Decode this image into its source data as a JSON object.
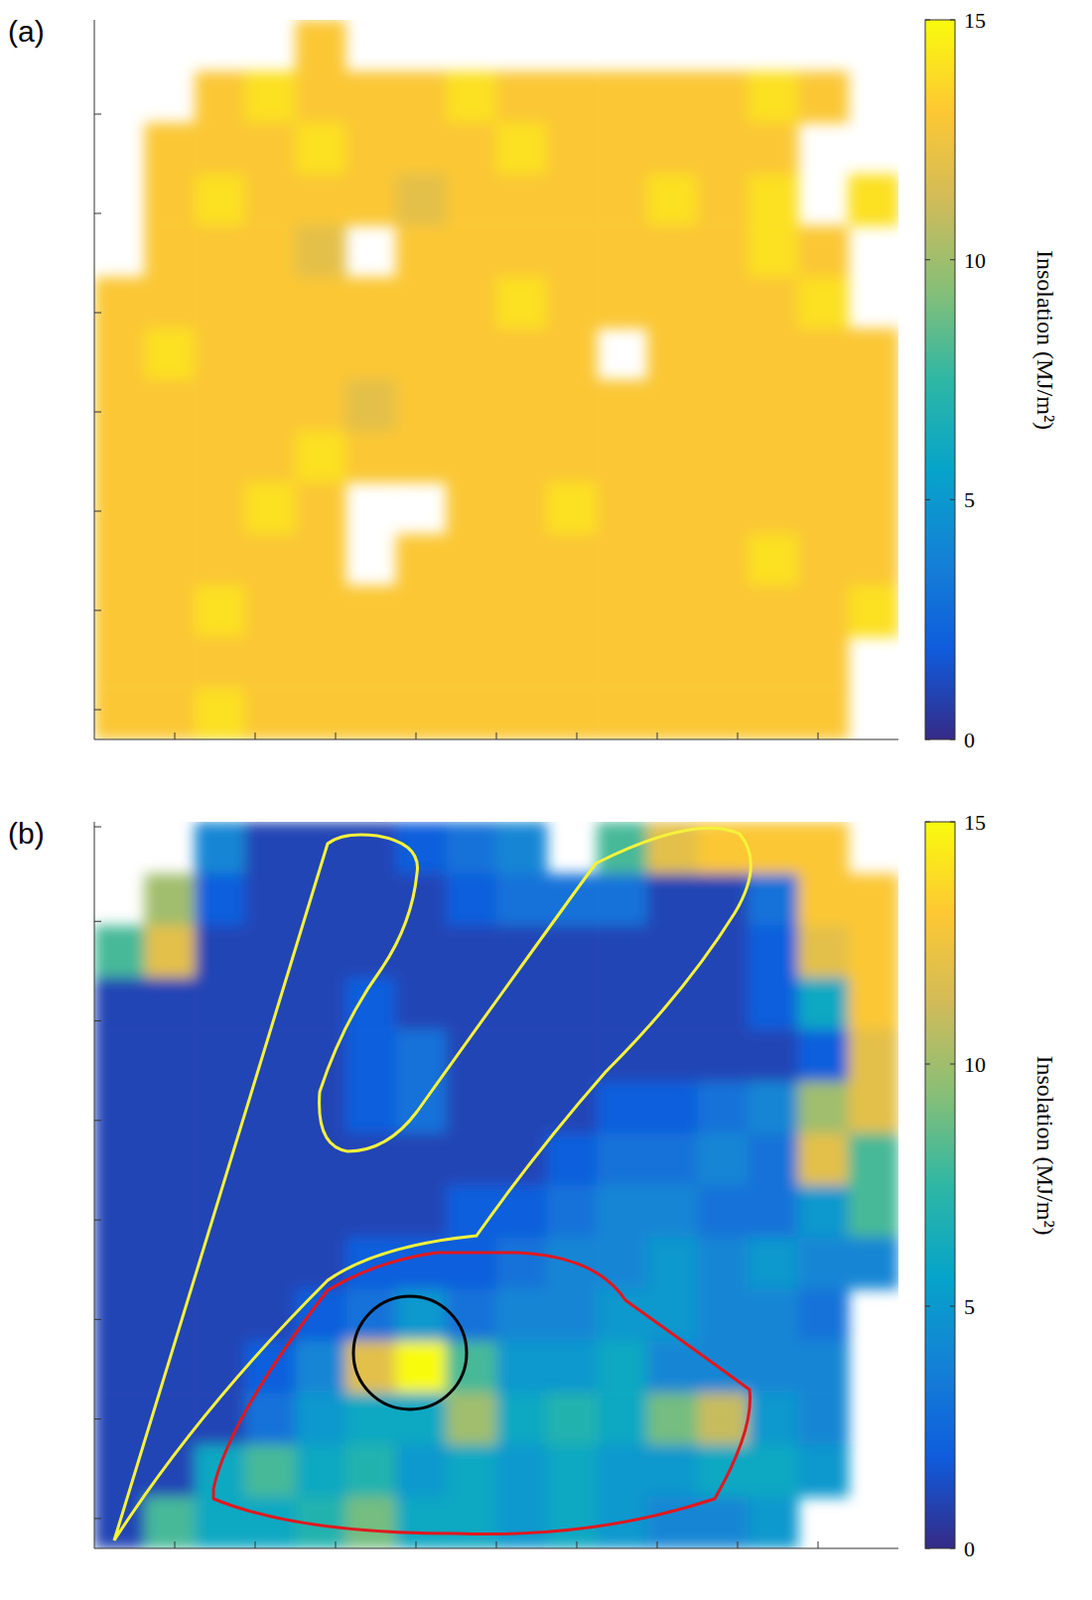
{
  "chart_data": [
    {
      "type": "heatmap",
      "title": "(a)",
      "tick_labels": false,
      "xlim": [
        0,
        10
      ],
      "xticks": [
        1,
        2,
        3,
        4,
        5,
        6,
        7,
        8,
        9
      ],
      "ylim": [
        0,
        7.25
      ],
      "yticks": [
        0.3,
        1.3,
        2.3,
        3.3,
        4.3,
        5.3,
        6.3
      ],
      "colorbar": {
        "label": "Insolation (MJ/m²)",
        "range": [
          0,
          15
        ],
        "ticks": [
          0,
          5,
          10,
          15
        ]
      },
      "cells": [
        [
          null,
          null,
          null,
          null,
          13,
          null,
          null,
          null,
          null,
          null,
          null,
          null,
          null,
          null,
          null,
          null
        ],
        [
          null,
          null,
          13,
          14,
          13,
          13,
          13,
          14,
          13,
          13,
          13,
          13,
          13,
          14,
          13,
          null
        ],
        [
          null,
          13,
          13,
          13,
          14,
          13,
          13,
          13,
          14,
          13,
          13,
          13,
          13,
          13,
          null,
          null
        ],
        [
          null,
          13,
          14,
          13,
          13,
          13,
          12,
          13,
          13,
          13,
          13,
          14,
          13,
          14,
          null,
          14
        ],
        [
          null,
          13,
          13,
          13,
          12,
          null,
          13,
          13,
          13,
          13,
          13,
          13,
          13,
          14,
          13,
          null
        ],
        [
          13,
          13,
          13,
          13,
          13,
          13,
          13,
          13,
          14,
          13,
          13,
          13,
          13,
          13,
          14,
          null
        ],
        [
          13,
          14,
          13,
          13,
          13,
          13,
          13,
          13,
          13,
          13,
          null,
          13,
          13,
          13,
          13,
          13
        ],
        [
          13,
          13,
          13,
          13,
          13,
          12,
          13,
          13,
          13,
          13,
          13,
          13,
          13,
          13,
          13,
          13
        ],
        [
          13,
          13,
          13,
          13,
          14,
          13,
          13,
          13,
          13,
          13,
          13,
          13,
          13,
          13,
          13,
          13
        ],
        [
          13,
          13,
          13,
          14,
          13,
          null,
          null,
          13,
          13,
          14,
          13,
          13,
          13,
          13,
          13,
          13
        ],
        [
          13,
          13,
          13,
          13,
          13,
          null,
          13,
          13,
          13,
          13,
          13,
          13,
          13,
          14,
          13,
          13
        ],
        [
          13,
          13,
          14,
          13,
          13,
          13,
          13,
          13,
          13,
          13,
          13,
          13,
          13,
          13,
          13,
          14
        ],
        [
          13,
          13,
          13,
          13,
          13,
          13,
          13,
          13,
          13,
          13,
          13,
          13,
          13,
          13,
          13,
          null
        ],
        [
          13,
          13,
          14,
          13,
          13,
          13,
          13,
          13,
          13,
          13,
          13,
          13,
          13,
          13,
          13,
          null
        ]
      ]
    },
    {
      "type": "heatmap",
      "title": "(b)",
      "tick_labels": false,
      "xlim": [
        0,
        10
      ],
      "xticks": [
        1,
        2,
        3,
        4,
        5,
        6,
        7,
        8,
        9
      ],
      "ylim": [
        0,
        7.3
      ],
      "yticks": [
        0.3,
        1.3,
        2.3,
        3.3,
        4.3,
        5.3,
        6.3,
        7.25
      ],
      "colorbar": {
        "label": "Insolation (MJ/m²)",
        "range": [
          0,
          15
        ],
        "ticks": [
          0,
          5,
          10,
          15
        ]
      },
      "cells": [
        [
          null,
          null,
          4,
          1,
          1,
          1,
          2,
          3,
          4,
          null,
          8,
          12,
          13,
          13,
          13,
          null
        ],
        [
          null,
          10,
          2,
          1,
          1,
          1,
          1,
          2,
          3,
          3,
          3,
          1,
          1,
          3,
          13,
          13
        ],
        [
          8,
          12,
          1,
          1,
          1,
          1,
          1,
          1,
          1,
          1,
          1,
          1,
          1,
          2,
          12,
          13
        ],
        [
          1,
          1,
          1,
          1,
          1,
          2,
          1,
          1,
          1,
          1,
          1,
          1,
          1,
          2,
          6,
          13
        ],
        [
          1,
          1,
          1,
          1,
          1,
          2,
          3,
          1,
          1,
          1,
          1,
          1,
          1,
          1,
          2,
          12
        ],
        [
          1,
          1,
          1,
          1,
          1,
          2,
          3,
          1,
          1,
          1,
          2,
          2,
          3,
          4,
          10,
          12
        ],
        [
          1,
          1,
          1,
          1,
          1,
          1,
          1,
          1,
          1,
          2,
          3,
          3,
          4,
          3,
          12,
          8
        ],
        [
          1,
          1,
          1,
          1,
          1,
          1,
          1,
          2,
          2,
          3,
          4,
          4,
          3,
          3,
          5,
          8
        ],
        [
          1,
          1,
          1,
          1,
          1,
          2,
          2,
          2,
          3,
          4,
          4,
          5,
          4,
          5,
          4,
          4
        ],
        [
          1,
          1,
          1,
          1,
          2,
          3,
          5,
          3,
          4,
          4,
          5,
          5,
          4,
          4,
          3,
          null
        ],
        [
          1,
          1,
          1,
          2,
          4,
          12,
          15,
          8,
          5,
          5,
          6,
          4,
          4,
          4,
          4,
          null
        ],
        [
          1,
          1,
          1,
          3,
          5,
          6,
          6,
          10,
          6,
          7,
          6,
          9,
          11,
          5,
          4,
          null
        ],
        [
          1,
          1,
          6,
          8,
          6,
          7,
          5,
          6,
          5,
          6,
          5,
          5,
          6,
          6,
          5,
          null
        ],
        [
          1,
          8,
          6,
          6,
          7,
          9,
          6,
          6,
          5,
          6,
          5,
          4,
          4,
          5,
          null,
          null
        ]
      ]
    }
  ]
}
